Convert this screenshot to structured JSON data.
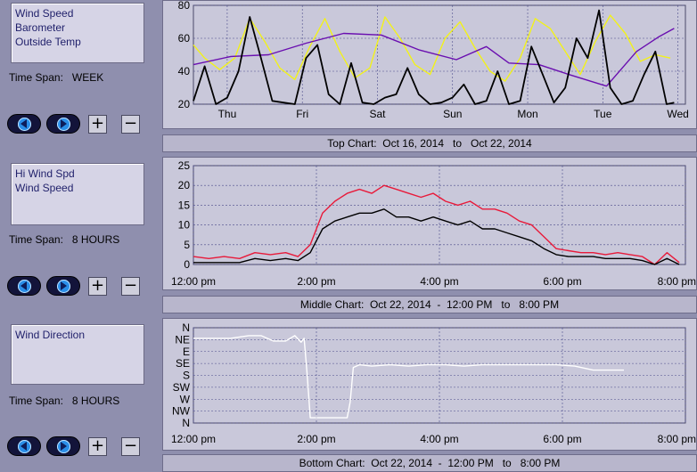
{
  "panels": [
    {
      "legend": [
        "Wind Speed",
        "Barometer",
        "Outside Temp"
      ],
      "time_span_label": "Time Span:",
      "time_span_value": "WEEK",
      "caption": "Top Chart:  Oct 16, 2014   to   Oct 22, 2014"
    },
    {
      "legend": [
        "Hi Wind Spd",
        "Wind Speed"
      ],
      "time_span_label": "Time Span:",
      "time_span_value": "8 HOURS",
      "caption": "Middle Chart:  Oct 22, 2014  -  12:00 PM   to   8:00 PM"
    },
    {
      "legend": [
        "Wind Direction"
      ],
      "time_span_label": "Time Span:",
      "time_span_value": "8 HOURS",
      "caption": "Bottom Chart:  Oct 22, 2014  -  12:00 PM   to   8:00 PM"
    }
  ],
  "buttons": {
    "back_icon": "left-arrow-icon",
    "forward_icon": "right-arrow-icon",
    "zoom_in": "+",
    "zoom_out": "−"
  },
  "colors": {
    "background": "#8f8fae",
    "plot": "#c9c8da",
    "wind_speed": "#000000",
    "barometer": "#6a0fb0",
    "outside_temp": "#f2f21a",
    "hi_wind": "#e81a3a",
    "direction": "#ffffff",
    "grid": "#4a4a8a"
  },
  "chart_data": [
    {
      "type": "line",
      "title": "Top Chart:  Oct 16, 2014   to   Oct 22, 2014",
      "categories": [
        "Thu",
        "Fri",
        "Sat",
        "Sun",
        "Mon",
        "Tue",
        "Wed"
      ],
      "ylim": [
        20,
        80
      ],
      "yticks": [
        "20",
        "40",
        "60",
        "80"
      ],
      "grid": true,
      "series": [
        {
          "name": "Outside Temp",
          "color": "#f2f21a",
          "x": [
            0,
            0.15,
            0.35,
            0.55,
            0.75,
            0.95,
            1.15,
            1.35,
            1.55,
            1.75,
            1.95,
            2.15,
            2.35,
            2.55,
            2.75,
            2.95,
            3.15,
            3.35,
            3.55,
            3.75,
            3.95,
            4.15,
            4.35,
            4.55,
            4.75,
            4.95,
            5.15,
            5.35,
            5.55,
            5.75,
            5.95,
            6.15,
            6.35
          ],
          "values": [
            56,
            48,
            41,
            48,
            72,
            58,
            42,
            35,
            55,
            72,
            52,
            36,
            42,
            73,
            60,
            44,
            38,
            60,
            70,
            54,
            40,
            34,
            48,
            72,
            66,
            52,
            38,
            58,
            74,
            63,
            46,
            50,
            48
          ]
        },
        {
          "name": "Barometer",
          "color": "#6a0fb0",
          "x": [
            0,
            0.5,
            1.0,
            1.5,
            2.0,
            2.5,
            3.0,
            3.5,
            3.9,
            4.2,
            4.6,
            5.0,
            5.5,
            5.9,
            6.2,
            6.4
          ],
          "values": [
            44,
            49,
            50,
            57,
            63,
            62,
            53,
            47,
            55,
            45,
            44,
            38,
            31,
            52,
            61,
            66
          ]
        },
        {
          "name": "Wind Speed",
          "color": "#000000",
          "x": [
            0,
            0.15,
            0.3,
            0.45,
            0.6,
            0.75,
            0.9,
            1.05,
            1.2,
            1.35,
            1.5,
            1.65,
            1.8,
            1.95,
            2.1,
            2.25,
            2.4,
            2.55,
            2.7,
            2.85,
            3.0,
            3.15,
            3.3,
            3.45,
            3.6,
            3.75,
            3.9,
            4.05,
            4.2,
            4.35,
            4.5,
            4.65,
            4.8,
            4.95,
            5.1,
            5.25,
            5.4,
            5.55,
            5.7,
            5.85,
            6.0,
            6.15,
            6.3,
            6.4
          ],
          "values": [
            22,
            43,
            20,
            24,
            40,
            73,
            48,
            22,
            21,
            20,
            48,
            56,
            26,
            20,
            45,
            21,
            20,
            24,
            26,
            42,
            26,
            20,
            21,
            24,
            32,
            20,
            22,
            40,
            20,
            22,
            55,
            38,
            21,
            30,
            60,
            48,
            77,
            30,
            20,
            22,
            38,
            52,
            20,
            21
          ]
        }
      ]
    },
    {
      "type": "line",
      "title": "Middle Chart:  Oct 22, 2014  -  12:00 PM   to   8:00 PM",
      "categories": [
        "12:00 pm",
        "2:00 pm",
        "4:00 pm",
        "6:00 pm",
        "8:00 pm"
      ],
      "ylim": [
        0,
        25
      ],
      "yticks": [
        "0",
        "5",
        "10",
        "15",
        "20",
        "25"
      ],
      "grid": true,
      "series": [
        {
          "name": "Hi Wind Spd",
          "color": "#e81a3a",
          "x": [
            0,
            0.25,
            0.5,
            0.75,
            1.0,
            1.25,
            1.5,
            1.7,
            1.9,
            2.1,
            2.3,
            2.5,
            2.7,
            2.9,
            3.1,
            3.3,
            3.5,
            3.7,
            3.9,
            4.1,
            4.3,
            4.5,
            4.7,
            4.9,
            5.1,
            5.3,
            5.5,
            5.7,
            5.9,
            6.1,
            6.3,
            6.5,
            6.7,
            6.9,
            7.1,
            7.3,
            7.5,
            7.7,
            7.9
          ],
          "values": [
            2,
            1.5,
            2,
            1.5,
            3,
            2.5,
            3,
            2,
            5,
            13,
            16,
            18,
            19,
            18,
            20,
            19,
            18,
            17,
            18,
            16,
            15,
            16,
            14,
            14,
            13,
            11,
            10,
            7,
            4,
            3.5,
            3,
            3,
            2.5,
            3,
            2.5,
            2,
            0,
            3,
            0.5
          ]
        },
        {
          "name": "Wind Speed",
          "color": "#000000",
          "x": [
            0,
            0.25,
            0.5,
            0.75,
            1.0,
            1.25,
            1.5,
            1.7,
            1.9,
            2.1,
            2.3,
            2.5,
            2.7,
            2.9,
            3.1,
            3.3,
            3.5,
            3.7,
            3.9,
            4.1,
            4.3,
            4.5,
            4.7,
            4.9,
            5.1,
            5.3,
            5.5,
            5.7,
            5.9,
            6.1,
            6.3,
            6.5,
            6.7,
            6.9,
            7.1,
            7.3,
            7.5,
            7.7,
            7.9
          ],
          "values": [
            0.5,
            0.5,
            0.5,
            0.5,
            1.5,
            1,
            1.5,
            1,
            3,
            9,
            11,
            12,
            13,
            13,
            14,
            12,
            12,
            11,
            12,
            11,
            10,
            11,
            9,
            9,
            8,
            7,
            6,
            4,
            2.5,
            2,
            2,
            2,
            1.5,
            1.5,
            1.5,
            1,
            0,
            1.5,
            0
          ]
        }
      ]
    },
    {
      "type": "line",
      "title": "Bottom Chart:  Oct 22, 2014  -  12:00 PM   to   8:00 PM",
      "categories": [
        "12:00 pm",
        "2:00 pm",
        "4:00 pm",
        "6:00 pm",
        "8:00 pm"
      ],
      "yticks": [
        "N",
        "NW",
        "W",
        "SW",
        "S",
        "SE",
        "E",
        "NE",
        "N"
      ],
      "ylim": [
        0,
        360
      ],
      "grid": true,
      "series": [
        {
          "name": "Wind Direction",
          "color": "#ffffff",
          "x": [
            0,
            0.3,
            0.6,
            0.9,
            1.1,
            1.3,
            1.5,
            1.65,
            1.75,
            1.8,
            1.85,
            1.9,
            2.0,
            2.5,
            2.55,
            2.6,
            2.7,
            2.9,
            3.2,
            3.5,
            3.8,
            4.1,
            4.4,
            4.7,
            5.0,
            5.3,
            5.6,
            5.9,
            6.2,
            6.5,
            6.8,
            7.0
          ],
          "values": [
            320,
            320,
            320,
            330,
            330,
            310,
            310,
            330,
            305,
            320,
            180,
            20,
            20,
            20,
            80,
            210,
            220,
            215,
            220,
            215,
            220,
            220,
            215,
            220,
            220,
            220,
            220,
            220,
            215,
            200,
            200,
            200
          ]
        }
      ]
    }
  ]
}
